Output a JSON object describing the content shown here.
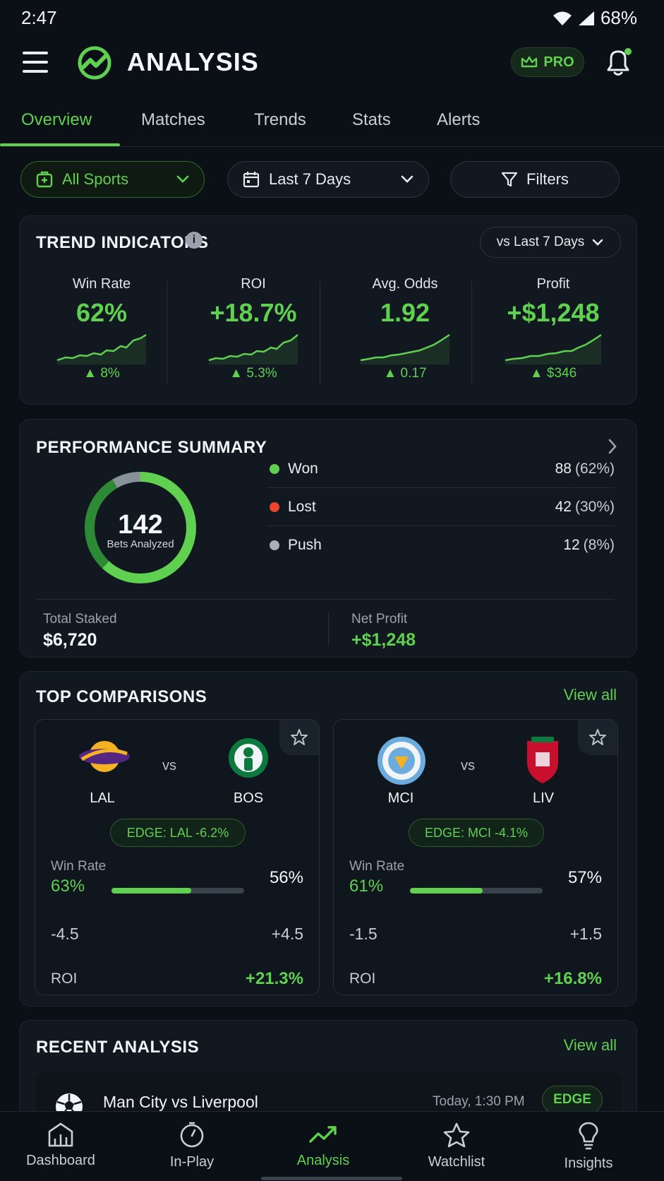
{
  "status_bar": {
    "time": "2:47",
    "battery": "68%"
  },
  "header": {
    "title": "ANALYSIS",
    "pro_label": "PRO"
  },
  "tabs": [
    {
      "label": "Overview",
      "active": true
    },
    {
      "label": "Matches"
    },
    {
      "label": "Trends"
    },
    {
      "label": "Stats"
    },
    {
      "label": "Alerts"
    }
  ],
  "filters": {
    "sports": "All Sports",
    "days": "Last 7 Days",
    "filters": "Filters"
  },
  "trend": {
    "title": "TREND INDICATORS",
    "info": "i",
    "compare": "vs Last 7 Days",
    "metrics": [
      {
        "label": "Win Rate",
        "value": "62%",
        "delta": "8%"
      },
      {
        "label": "ROI",
        "value": "+18.7%",
        "delta": "5.3%"
      },
      {
        "label": "Avg. Odds",
        "value": "1.92",
        "delta": "0.17"
      },
      {
        "label": "Profit",
        "value": "+$1,248",
        "delta": "$346"
      }
    ]
  },
  "performance": {
    "title": "PERFORMANCE SUMMARY",
    "total": "142",
    "total_label": "Bets Analyzed",
    "rows": [
      {
        "name": "Won",
        "count": "88",
        "pct": "(62%)",
        "color": "#5fd04f"
      },
      {
        "name": "Lost",
        "count": "42",
        "pct": "(30%)",
        "color": "#e8452b"
      },
      {
        "name": "Push",
        "count": "12",
        "pct": "(8%)",
        "color": "#a9b0b7"
      }
    ],
    "total_staked_label": "Total Staked",
    "total_staked": "$6,720",
    "net_profit_label": "Net Profit",
    "net_profit": "+$1,248"
  },
  "comparisons": {
    "title": "TOP COMPARISONS",
    "view_all": "View all",
    "vs": "vs",
    "win_rate_label": "Win Rate",
    "roi_label": "ROI",
    "matches": [
      {
        "home": "LAL",
        "away": "BOS",
        "edge": "EDGE: LAL -6.2%",
        "wr_home": "63%",
        "wr_away": "56%",
        "wr_fill": 0.6,
        "spread_home": "-4.5",
        "spread_away": "+4.5",
        "roi": "+21.3%"
      },
      {
        "home": "MCI",
        "away": "LIV",
        "edge": "EDGE: MCI -4.1%",
        "wr_home": "61%",
        "wr_away": "57%",
        "wr_fill": 0.55,
        "spread_home": "-1.5",
        "spread_away": "+1.5",
        "roi": "+16.8%"
      }
    ]
  },
  "recent": {
    "title": "RECENT ANALYSIS",
    "view_all": "View all",
    "items": [
      {
        "title": "Man City vs Liverpool",
        "time": "Today, 1:30 PM",
        "badge": "EDGE"
      }
    ]
  },
  "nav": [
    {
      "label": "Dashboard",
      "icon": "dashboard-icon"
    },
    {
      "label": "In-Play",
      "icon": "stopwatch-icon"
    },
    {
      "label": "Analysis",
      "icon": "trend-line-icon",
      "active": true
    },
    {
      "label": "Watchlist",
      "icon": "star-icon"
    },
    {
      "label": "Insights",
      "icon": "lightbulb-icon"
    }
  ],
  "colors": {
    "accent": "#5fd04f",
    "loss": "#e8452b",
    "background": "#0b1016",
    "card": "#111820"
  }
}
